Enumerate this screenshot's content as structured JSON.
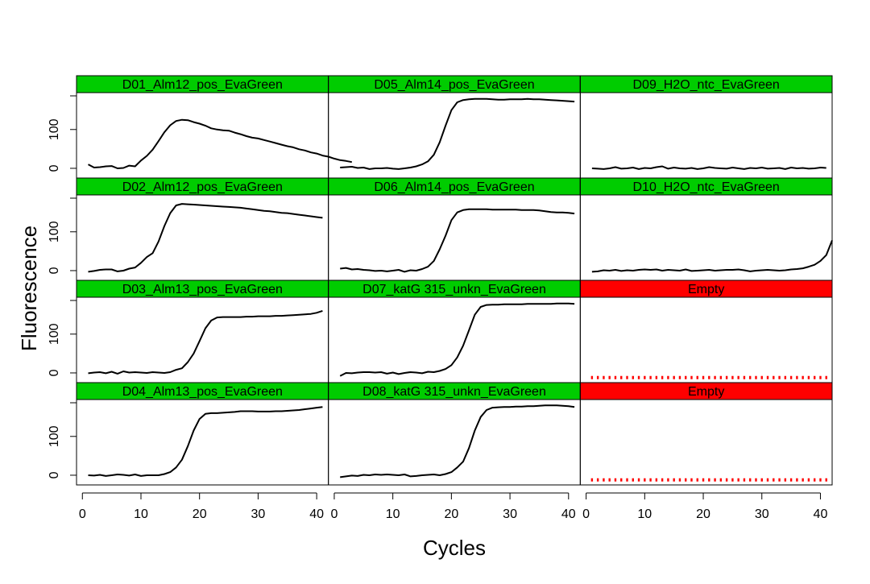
{
  "chart_data": {
    "type": "line",
    "xlabel": "Cycles",
    "ylabel": "Fluorescence",
    "x_ticks": [
      0,
      10,
      20,
      30,
      40
    ],
    "y_ticks": [
      0,
      100
    ],
    "xlim": [
      -1,
      42
    ],
    "ylim": [
      -25,
      195
    ],
    "layout": "4 rows x 3 columns",
    "colors": {
      "strip_ok": "#00CC00",
      "strip_empty": "#FF0000",
      "line": "#000000",
      "empty_marker": "#FF0000"
    },
    "panels": [
      {
        "label": "D01_Alm12_pos_EvaGreen",
        "empty": false,
        "x_start": 1,
        "x_step": 1,
        "y": [
          10,
          2,
          3,
          5,
          6,
          0,
          1,
          7,
          5,
          20,
          32,
          48,
          70,
          93,
          111,
          122,
          125,
          124,
          119,
          115,
          110,
          103,
          100,
          98,
          97,
          92,
          88,
          83,
          79,
          77,
          73,
          69,
          65,
          61,
          57,
          54,
          49,
          46,
          41,
          38,
          33,
          30,
          25,
          21,
          19,
          16
        ]
      },
      {
        "label": "D05_Alm14_pos_EvaGreen",
        "empty": false,
        "x_start": 1,
        "x_step": 1,
        "y": [
          2,
          3,
          4,
          1,
          2,
          -2,
          0,
          0,
          1,
          -1,
          -2,
          0,
          2,
          5,
          10,
          18,
          35,
          67,
          110,
          150,
          170,
          176,
          178,
          179,
          179,
          179,
          178,
          177,
          177,
          178,
          178,
          178,
          179,
          178,
          178,
          177,
          176,
          175,
          174,
          173,
          172
        ]
      },
      {
        "label": "D09_H2O_ntc_EvaGreen",
        "empty": false,
        "x_start": 1,
        "x_step": 1,
        "y": [
          0,
          -1,
          -2,
          0,
          3,
          -1,
          0,
          2,
          -2,
          1,
          0,
          3,
          5,
          -1,
          2,
          0,
          -1,
          1,
          -2,
          0,
          3,
          1,
          0,
          -1,
          2,
          0,
          -2,
          1,
          0,
          2,
          -1,
          0,
          1,
          -2,
          2,
          0,
          1,
          -1,
          0,
          2,
          1
        ]
      },
      {
        "label": "D02_Alm12_pos_EvaGreen",
        "empty": false,
        "x_start": 1,
        "x_step": 1,
        "y": [
          -3,
          -1,
          2,
          3,
          3,
          -2,
          0,
          5,
          8,
          20,
          35,
          45,
          75,
          115,
          148,
          168,
          172,
          171,
          170,
          169,
          168,
          167,
          166,
          165,
          164,
          163,
          162,
          160,
          158,
          156,
          154,
          153,
          151,
          149,
          148,
          146,
          144,
          142,
          140,
          138,
          136
        ]
      },
      {
        "label": "D06_Alm14_pos_EvaGreen",
        "empty": false,
        "x_start": 1,
        "x_step": 1,
        "y": [
          5,
          7,
          3,
          4,
          2,
          1,
          -1,
          0,
          -2,
          0,
          2,
          -3,
          1,
          0,
          4,
          10,
          25,
          55,
          90,
          130,
          150,
          156,
          158,
          158,
          158,
          158,
          157,
          157,
          157,
          157,
          157,
          156,
          156,
          156,
          155,
          153,
          151,
          150,
          150,
          149,
          147
        ]
      },
      {
        "label": "D10_H2O_ntc_EvaGreen",
        "empty": false,
        "x_start": 1,
        "x_step": 1,
        "y": [
          -3,
          -2,
          1,
          0,
          2,
          -1,
          1,
          0,
          2,
          3,
          2,
          3,
          0,
          2,
          1,
          0,
          3,
          -1,
          0,
          1,
          2,
          0,
          1,
          2,
          2,
          3,
          1,
          -2,
          0,
          1,
          2,
          1,
          0,
          1,
          3,
          4,
          6,
          10,
          15,
          25,
          40,
          78
        ]
      },
      {
        "label": "D03_Alm13_pos_EvaGreen",
        "empty": false,
        "x_start": 1,
        "x_step": 1,
        "y": [
          -1,
          1,
          2,
          -1,
          3,
          -2,
          4,
          1,
          2,
          1,
          0,
          2,
          1,
          0,
          2,
          8,
          12,
          28,
          50,
          82,
          115,
          135,
          143,
          144,
          144,
          144,
          144,
          145,
          145,
          146,
          146,
          146,
          147,
          147,
          148,
          149,
          150,
          151,
          152,
          155,
          160
        ]
      },
      {
        "label": "D07_katG 315_unkn_EvaGreen",
        "empty": false,
        "x_start": 1,
        "x_step": 1,
        "y": [
          -8,
          0,
          -1,
          1,
          2,
          2,
          1,
          2,
          -2,
          1,
          -3,
          0,
          2,
          1,
          -1,
          3,
          2,
          5,
          10,
          20,
          40,
          70,
          110,
          150,
          170,
          175,
          176,
          176,
          177,
          177,
          177,
          177,
          178,
          178,
          178,
          178,
          178,
          179,
          179,
          179,
          178
        ]
      },
      {
        "label": "Empty",
        "empty": true,
        "marker_y": -12
      },
      {
        "label": "D04_Alm13_pos_EvaGreen",
        "empty": false,
        "x_start": 1,
        "x_step": 1,
        "y": [
          0,
          -1,
          1,
          -2,
          0,
          2,
          1,
          -1,
          2,
          -2,
          0,
          0,
          0,
          3,
          8,
          20,
          40,
          75,
          115,
          145,
          158,
          160,
          160,
          161,
          162,
          163,
          165,
          165,
          165,
          164,
          164,
          164,
          165,
          165,
          166,
          167,
          168,
          170,
          172,
          174,
          176
        ]
      },
      {
        "label": "D08_katG 315_unkn_EvaGreen",
        "empty": false,
        "x_start": 1,
        "x_step": 1,
        "y": [
          -5,
          -3,
          -1,
          -2,
          1,
          0,
          2,
          1,
          2,
          1,
          0,
          2,
          -3,
          -2,
          0,
          1,
          2,
          0,
          3,
          8,
          20,
          35,
          70,
          115,
          150,
          168,
          174,
          175,
          176,
          176,
          177,
          177,
          178,
          178,
          179,
          180,
          180,
          180,
          179,
          178,
          176
        ]
      },
      {
        "label": "Empty",
        "empty": true,
        "marker_y": -12
      }
    ]
  }
}
